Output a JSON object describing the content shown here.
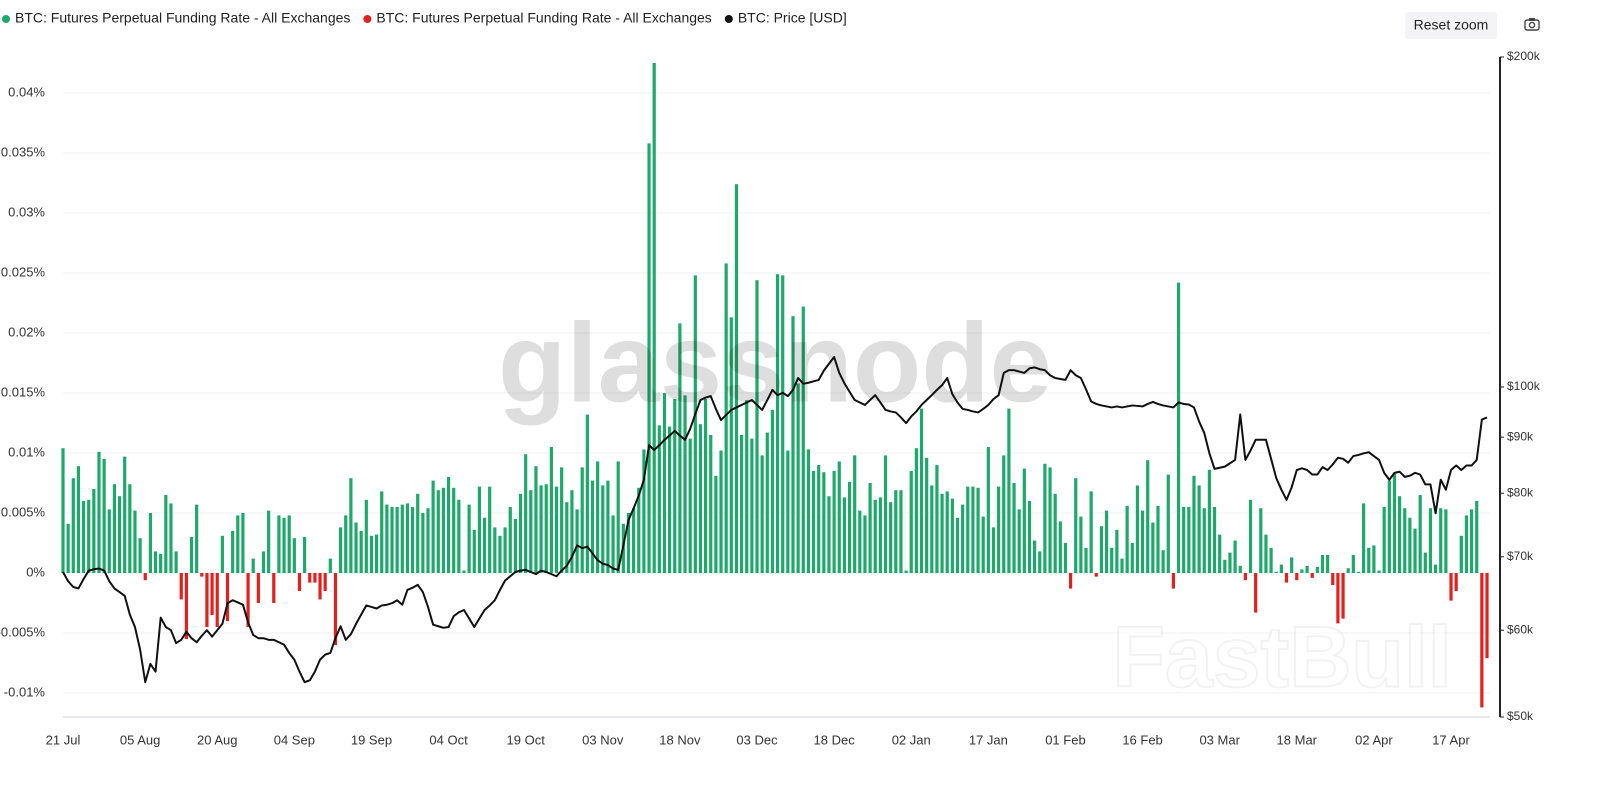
{
  "chart_data": {
    "type": "bar",
    "legend": "top-left",
    "grid": true,
    "y2scale": "log",
    "ylim": [
      -0.012,
      0.043
    ],
    "yticks": [
      {
        "value": -0.01,
        "label": "-0.01%"
      },
      {
        "value": -0.005,
        "label": "-0.005%"
      },
      {
        "value": 0,
        "label": "0%"
      },
      {
        "value": 0.005,
        "label": "0.005%"
      },
      {
        "value": 0.01,
        "label": "0.01%"
      },
      {
        "value": 0.015,
        "label": "0.015%"
      },
      {
        "value": 0.02,
        "label": "0.02%"
      },
      {
        "value": 0.025,
        "label": "0.025%"
      },
      {
        "value": 0.03,
        "label": "0.03%"
      },
      {
        "value": 0.035,
        "label": "0.035%"
      },
      {
        "value": 0.04,
        "label": "0.04%"
      }
    ],
    "y2lim": [
      50000,
      200000
    ],
    "y2ticks": [
      {
        "value": 50000,
        "label": "$50k"
      },
      {
        "value": 60000,
        "label": "$60k"
      },
      {
        "value": 70000,
        "label": "$70k"
      },
      {
        "value": 80000,
        "label": "$80k"
      },
      {
        "value": 90000,
        "label": "$90k"
      },
      {
        "value": 100000,
        "label": "$100k"
      },
      {
        "value": 200000,
        "label": "$200k"
      }
    ],
    "categories": [
      "21 Jul",
      null,
      null,
      null,
      null,
      null,
      null,
      null,
      null,
      null,
      null,
      null,
      null,
      null,
      null,
      "05 Aug",
      null,
      null,
      null,
      null,
      null,
      null,
      null,
      null,
      null,
      null,
      null,
      null,
      null,
      null,
      "20 Aug",
      null,
      null,
      null,
      null,
      null,
      null,
      null,
      null,
      null,
      null,
      null,
      null,
      null,
      null,
      "04 Sep",
      null,
      null,
      null,
      null,
      null,
      null,
      null,
      null,
      null,
      null,
      null,
      null,
      null,
      null,
      "19 Sep",
      null,
      null,
      null,
      null,
      null,
      null,
      null,
      null,
      null,
      null,
      null,
      null,
      null,
      null,
      "04 Oct",
      null,
      null,
      null,
      null,
      null,
      null,
      null,
      null,
      null,
      null,
      null,
      null,
      null,
      null,
      "19 Oct",
      null,
      null,
      null,
      null,
      null,
      null,
      null,
      null,
      null,
      null,
      null,
      null,
      null,
      null,
      "03 Nov",
      null,
      null,
      null,
      null,
      null,
      null,
      null,
      null,
      null,
      null,
      null,
      null,
      null,
      null,
      "18 Nov",
      null,
      null,
      null,
      null,
      null,
      null,
      null,
      null,
      null,
      null,
      null,
      null,
      null,
      null,
      "03 Dec",
      null,
      null,
      null,
      null,
      null,
      null,
      null,
      null,
      null,
      null,
      null,
      null,
      null,
      null,
      "18 Dec",
      null,
      null,
      null,
      null,
      null,
      null,
      null,
      null,
      null,
      null,
      null,
      null,
      null,
      null,
      "02 Jan",
      null,
      null,
      null,
      null,
      null,
      null,
      null,
      null,
      null,
      null,
      null,
      null,
      null,
      null,
      "17 Jan",
      null,
      null,
      null,
      null,
      null,
      null,
      null,
      null,
      null,
      null,
      null,
      null,
      null,
      null,
      "01 Feb",
      null,
      null,
      null,
      null,
      null,
      null,
      null,
      null,
      null,
      null,
      null,
      null,
      null,
      null,
      "16 Feb",
      null,
      null,
      null,
      null,
      null,
      null,
      null,
      null,
      null,
      null,
      null,
      null,
      null,
      null,
      "03 Mar",
      null,
      null,
      null,
      null,
      null,
      null,
      null,
      null,
      null,
      null,
      null,
      null,
      null,
      null,
      "18 Mar",
      null,
      null,
      null,
      null,
      null,
      null,
      null,
      null,
      null,
      null,
      null,
      null,
      null,
      null,
      "02 Apr",
      null,
      null,
      null,
      null,
      null,
      null,
      null,
      null,
      null,
      null,
      null,
      null,
      null,
      null,
      "17 Apr",
      null,
      null,
      null,
      null,
      null,
      null,
      null
    ],
    "series": [
      {
        "name": "BTC: Futures Perpetual Funding Rate - All Exchanges",
        "color": "#1fa86b",
        "values": [
          0.0104,
          0.0041,
          0.0079,
          0.0089,
          0.006,
          0.0061,
          0.007,
          0.0101,
          0.0095,
          0.0053,
          0.0074,
          0.0064,
          0.0097,
          0.0074,
          0.0052,
          0.0029,
          null,
          0.005,
          0.0018,
          0.0016,
          0.0065,
          0.0058,
          0.0018,
          null,
          null,
          0.003,
          0.0057,
          null,
          null,
          null,
          null,
          0.0031,
          null,
          0.0035,
          0.0048,
          0.005,
          null,
          0.0012,
          null,
          0.0018,
          0.0052,
          null,
          0.0048,
          0.0046,
          0.0048,
          0.0029,
          null,
          0.003,
          null,
          null,
          null,
          null,
          0.0012,
          null,
          0.0038,
          0.0048,
          0.0079,
          0.0042,
          0.0035,
          0.0061,
          0.0031,
          0.0032,
          0.0068,
          0.0057,
          0.0055,
          0.0055,
          0.0057,
          0.0058,
          0.0055,
          0.0066,
          0.005,
          0.0054,
          0.0077,
          0.0069,
          0.0071,
          0.008,
          0.0071,
          0.0061,
          0.0002,
          0.0057,
          0.0036,
          0.0072,
          0.0046,
          0.0072,
          0.0038,
          0.0031,
          0.0038,
          0.0055,
          0.0045,
          0.0066,
          0.0099,
          0.0069,
          0.0089,
          0.0073,
          0.0074,
          0.0105,
          0.0072,
          0.0088,
          0.0059,
          0.0069,
          0.0053,
          0.0088,
          0.0132,
          0.0077,
          0.0093,
          0.0073,
          0.0077,
          0.0048,
          0.0093,
          0.0041,
          0.005,
          0.0054,
          0.0071,
          0.0103,
          0.0358,
          0.0425,
          0.0123,
          0.015,
          0.0122,
          0.0145,
          0.0208,
          0.0148,
          0.0112,
          0.0248,
          0.0124,
          0.0145,
          0.0115,
          0.0081,
          0.0102,
          0.0258,
          0.0213,
          0.0324,
          0.0115,
          0.0144,
          0.0112,
          0.0244,
          0.0098,
          0.0117,
          0.0136,
          0.0249,
          0.0248,
          0.0102,
          0.0214,
          0.0158,
          0.0222,
          0.0103,
          0.0085,
          0.009,
          0.0084,
          0.0064,
          0.0085,
          0.0093,
          0.0063,
          0.0076,
          0.0098,
          0.0052,
          0.0048,
          0.0075,
          0.0061,
          0.0063,
          0.0098,
          0.0059,
          0.0069,
          0.0069,
          0.0002,
          0.0085,
          0.0104,
          0.0137,
          0.0096,
          0.0073,
          0.009,
          0.0066,
          0.0068,
          0.0062,
          0.0046,
          0.0057,
          0.0072,
          0.0072,
          0.0071,
          0.0047,
          0.0105,
          0.0038,
          0.0072,
          0.0098,
          0.0137,
          0.0075,
          0.0053,
          0.0087,
          0.006,
          0.0027,
          0.0018,
          0.0091,
          0.0088,
          0.0066,
          0.0043,
          0.0025,
          null,
          0.0079,
          0.0047,
          0.0021,
          0.0068,
          null,
          0.0039,
          0.0052,
          0.0021,
          0.0036,
          0.0012,
          0.0056,
          0.0025,
          0.0073,
          0.0052,
          0.0094,
          0.0042,
          0.0056,
          0.0019,
          0.0082,
          null,
          0.0242,
          0.0055,
          0.0055,
          0.0081,
          0.0073,
          0.0054,
          0.0086,
          0.0055,
          0.0032,
          0.0011,
          0.0017,
          0.0027,
          0.0006,
          null,
          0.0061,
          null,
          0.0054,
          0.0032,
          0.0021,
          0.0001,
          0.0007,
          null,
          0.0013,
          null,
          0.0003,
          0.0006,
          null,
          0.0005,
          0.0015,
          0.0015,
          null,
          null,
          null,
          0.0004,
          0.0015,
          0.0001,
          0.0058,
          0.0021,
          0.0023,
          0.0002,
          0.0055,
          0.0077,
          0.0083,
          0.0064,
          0.0054,
          0.0046,
          0.0037,
          0.0065,
          0.0017,
          0.0054,
          0.0007,
          0.0054,
          0.0053,
          null,
          null,
          0.0031,
          0.0048,
          0.0053,
          0.006,
          null,
          null
        ]
      },
      {
        "name": "BTC: Futures Perpetual Funding Rate - All Exchanges",
        "color": "#e0211f",
        "values": [
          null,
          null,
          null,
          null,
          null,
          null,
          null,
          null,
          null,
          null,
          null,
          null,
          null,
          null,
          null,
          null,
          -0.0006,
          null,
          null,
          null,
          null,
          null,
          null,
          -0.0022,
          -0.0055,
          null,
          null,
          -0.0003,
          -0.0045,
          -0.0035,
          -0.0045,
          null,
          -0.004,
          null,
          null,
          null,
          -0.0045,
          null,
          -0.0025,
          null,
          null,
          -0.0025,
          null,
          null,
          null,
          null,
          -0.0015,
          null,
          -0.0008,
          -0.0008,
          -0.0022,
          -0.0015,
          null,
          -0.006,
          null,
          null,
          null,
          null,
          null,
          null,
          null,
          null,
          null,
          null,
          null,
          null,
          null,
          null,
          null,
          null,
          null,
          null,
          null,
          null,
          null,
          null,
          null,
          null,
          null,
          null,
          null,
          null,
          null,
          null,
          null,
          null,
          null,
          null,
          null,
          null,
          null,
          null,
          null,
          null,
          null,
          null,
          null,
          null,
          null,
          null,
          null,
          null,
          null,
          null,
          null,
          null,
          null,
          null,
          null,
          null,
          null,
          null,
          null,
          null,
          null,
          null,
          null,
          null,
          null,
          null,
          null,
          null,
          null,
          null,
          null,
          null,
          null,
          null,
          null,
          null,
          null,
          null,
          null,
          null,
          null,
          null,
          null,
          null,
          null,
          null,
          null,
          null,
          null,
          null,
          null,
          null,
          null,
          null,
          null,
          null,
          null,
          null,
          null,
          null,
          null,
          null,
          null,
          null,
          null,
          null,
          null,
          null,
          null,
          null,
          null,
          null,
          null,
          null,
          null,
          null,
          null,
          null,
          null,
          null,
          null,
          null,
          null,
          null,
          null,
          null,
          null,
          null,
          null,
          null,
          null,
          null,
          null,
          null,
          null,
          null,
          null,
          null,
          null,
          null,
          null,
          null,
          -0.0013,
          null,
          null,
          null,
          null,
          -0.0003,
          null,
          null,
          null,
          null,
          null,
          null,
          null,
          null,
          null,
          null,
          null,
          null,
          null,
          null,
          -0.0013,
          null,
          null,
          null,
          null,
          null,
          null,
          null,
          null,
          null,
          null,
          null,
          null,
          null,
          -0.0006,
          null,
          -0.0033,
          null,
          null,
          null,
          null,
          null,
          -0.0008,
          null,
          -0.0006,
          null,
          null,
          -0.0004,
          null,
          null,
          null,
          -0.001,
          -0.0042,
          -0.0038,
          null,
          null,
          null,
          null,
          null,
          null,
          null,
          null,
          null,
          null,
          null,
          null,
          null,
          null,
          null,
          null,
          null,
          null,
          null,
          null,
          -0.0023,
          -0.0015,
          null,
          null,
          null,
          null,
          -0.0112,
          -0.0071
        ]
      },
      {
        "name": "BTC: Price [USD]",
        "color": "#111111",
        "type": "line",
        "axis": "y2",
        "values": [
          67800,
          66500,
          65700,
          65500,
          66800,
          68000,
          68200,
          68300,
          68000,
          66500,
          65500,
          65000,
          64500,
          62000,
          60400,
          57600,
          53800,
          55900,
          55000,
          61600,
          60400,
          60000,
          58400,
          58800,
          59800,
          59000,
          58500,
          59300,
          60000,
          59200,
          60000,
          60800,
          63500,
          63900,
          63600,
          63300,
          61000,
          59400,
          59000,
          59000,
          58800,
          58800,
          58500,
          58200,
          57200,
          56400,
          55000,
          53800,
          54000,
          55000,
          56400,
          57000,
          57200,
          59000,
          60500,
          58800,
          59500,
          60800,
          62000,
          63200,
          63000,
          62800,
          63200,
          63300,
          63500,
          63900,
          63300,
          65300,
          65600,
          66000,
          65000,
          63000,
          60700,
          60500,
          60300,
          60400,
          61800,
          62300,
          62600,
          61500,
          60400,
          61500,
          62600,
          63200,
          63900,
          65300,
          66600,
          67200,
          67800,
          68000,
          68100,
          67800,
          67500,
          68000,
          67800,
          67500,
          67200,
          68000,
          68700,
          70000,
          71700,
          71300,
          71500,
          70500,
          69500,
          69000,
          68800,
          68300,
          68100,
          71700,
          75600,
          77500,
          79600,
          82300,
          88500,
          87600,
          88500,
          89500,
          90300,
          91200,
          90300,
          89500,
          91600,
          94500,
          97300,
          97800,
          98100,
          95500,
          93300,
          94300,
          95300,
          95800,
          96300,
          96800,
          97300,
          96300,
          95300,
          97300,
          99400,
          98300,
          98800,
          98100,
          99400,
          101900,
          100700,
          100900,
          101200,
          101500,
          103500,
          105000,
          106500,
          103000,
          100800,
          99000,
          97300,
          96800,
          96300,
          97300,
          98300,
          96800,
          95300,
          95000,
          94800,
          93800,
          92700,
          94000,
          95000,
          96300,
          97300,
          98300,
          99400,
          100400,
          101900,
          98500,
          96800,
          95500,
          95300,
          95000,
          94800,
          95500,
          96300,
          97500,
          98300,
          103000,
          103600,
          103600,
          103300,
          103000,
          104000,
          104200,
          103800,
          103600,
          102500,
          101900,
          101700,
          101500,
          103600,
          102500,
          101900,
          99500,
          97000,
          96500,
          96200,
          96000,
          95800,
          96000,
          95800,
          96000,
          96200,
          96100,
          96000,
          96500,
          96900,
          96500,
          96200,
          96000,
          95800,
          96800,
          96500,
          96400,
          95800,
          93000,
          90800,
          87000,
          84200,
          84400,
          84600,
          85200,
          85800,
          94400,
          85800,
          87500,
          89500,
          89500,
          89500,
          86000,
          82600,
          80600,
          78900,
          81000,
          84000,
          84300,
          84000,
          83200,
          83200,
          84500,
          84000,
          85000,
          86200,
          86000,
          85300,
          86500,
          86700,
          87000,
          87200,
          86500,
          85800,
          83500,
          82300,
          83500,
          83700,
          82800,
          83000,
          83500,
          83200,
          81500,
          81500,
          76700,
          82300,
          80600,
          84000,
          84800,
          84000,
          84800,
          84800,
          85800,
          93400,
          93800
        ]
      }
    ]
  },
  "ui": {
    "reset_zoom": "Reset zoom",
    "watermarks": [
      "glassnode",
      "FastBull"
    ]
  }
}
